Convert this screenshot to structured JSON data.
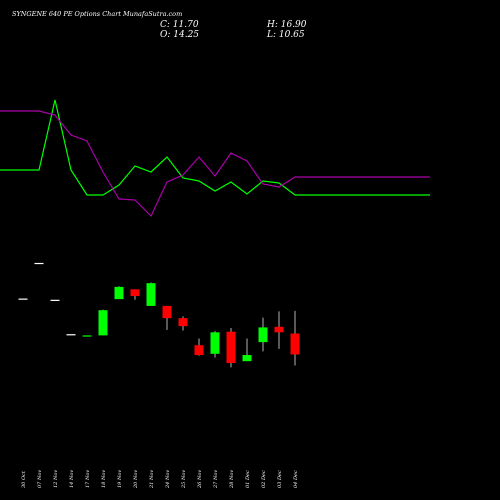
{
  "title": "SYNGENE 640  PE Options  Chart MunafaSutra.com",
  "ohlc": {
    "close_label": "C: 11.70",
    "open_label": "O: 14.25",
    "high_label": "H: 16.90",
    "low_label": "L: 10.65"
  },
  "colors": {
    "background": "#000000",
    "up": "#00ff00",
    "down": "#ff0000",
    "line_upper": "#00ff00",
    "line_lower": "#aa00aa",
    "text": "#ffffff"
  },
  "chart_data": {
    "type": "candlestick",
    "categories": [
      "30 Oct",
      "07 Nov",
      "12 Nov",
      "14 Nov",
      "17 Nov",
      "18 Nov",
      "19 Nov",
      "20 Nov",
      "21 Nov",
      "24 Nov",
      "25 Nov",
      "26 Nov",
      "27 Nov",
      "28 Nov",
      "01 Dec",
      "02 Dec",
      "03 Dec",
      "04 Dec"
    ],
    "ylim": [
      8,
      36
    ],
    "candles": [
      {
        "open": 28.0,
        "high": 28.0,
        "low": 28.0,
        "close": 28.0,
        "dir": "flat"
      },
      {
        "open": 33.8,
        "high": 33.8,
        "low": 33.8,
        "close": 33.8,
        "dir": "flat"
      },
      {
        "open": 27.8,
        "high": 27.8,
        "low": 27.8,
        "close": 27.8,
        "dir": "flat"
      },
      {
        "open": 22.2,
        "high": 22.2,
        "low": 22.2,
        "close": 22.2,
        "dir": "flat"
      },
      {
        "open": 22.0,
        "high": 22.0,
        "low": 22.0,
        "close": 22.0,
        "dir": "flat"
      },
      {
        "open": 22.1,
        "high": 26.3,
        "low": 22.1,
        "close": 26.2,
        "dir": "up"
      },
      {
        "open": 28.0,
        "high": 30.1,
        "low": 28.0,
        "close": 30.0,
        "dir": "up"
      },
      {
        "open": 29.6,
        "high": 29.6,
        "low": 27.9,
        "close": 28.5,
        "dir": "down"
      },
      {
        "open": 26.9,
        "high": 30.7,
        "low": 26.9,
        "close": 30.6,
        "dir": "up"
      },
      {
        "open": 26.9,
        "high": 26.9,
        "low": 23.0,
        "close": 24.9,
        "dir": "down"
      },
      {
        "open": 24.9,
        "high": 25.2,
        "low": 22.9,
        "close": 23.6,
        "dir": "down"
      },
      {
        "open": 20.5,
        "high": 21.6,
        "low": 18.8,
        "close": 18.9,
        "dir": "down"
      },
      {
        "open": 19.1,
        "high": 22.8,
        "low": 18.5,
        "close": 22.6,
        "dir": "up"
      },
      {
        "open": 22.7,
        "high": 23.3,
        "low": 16.9,
        "close": 17.6,
        "dir": "down"
      },
      {
        "open": 17.9,
        "high": 21.6,
        "low": 17.9,
        "close": 18.9,
        "dir": "up"
      },
      {
        "open": 21.0,
        "high": 25.0,
        "low": 19.5,
        "close": 23.4,
        "dir": "up"
      },
      {
        "open": 23.5,
        "high": 26.0,
        "low": 19.9,
        "close": 22.6,
        "dir": "down"
      },
      {
        "open": 22.4,
        "high": 26.1,
        "low": 17.2,
        "close": 19.0,
        "dir": "down"
      }
    ],
    "series": [
      {
        "key": "upper",
        "values": [
          95,
          95,
          88,
          95,
          97.5,
          97.5,
          96.5,
          94.6,
          95.2,
          93.7,
          95.8,
          96.1,
          97.1,
          96.2,
          97.4,
          96.1,
          96.3,
          97.5
        ]
      },
      {
        "key": "lower",
        "values": [
          89.1,
          89.1,
          89.5,
          91.5,
          92.1,
          95.2,
          97.9,
          98.0,
          99.6,
          96.2,
          95.5,
          93.7,
          95.6,
          93.3,
          94.1,
          96.4,
          96.7,
          95.7
        ]
      }
    ],
    "series_ylim": [
      85,
      102
    ]
  }
}
